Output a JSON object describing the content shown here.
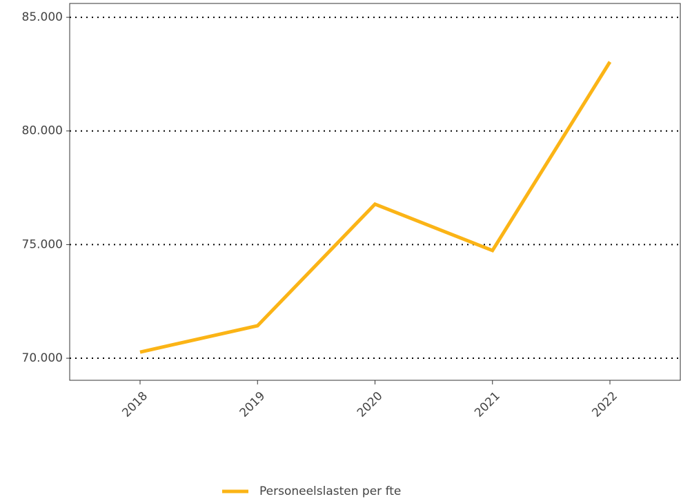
{
  "chart_data": {
    "type": "line",
    "categories": [
      "2018",
      "2019",
      "2020",
      "2021",
      "2022"
    ],
    "series": [
      {
        "name": "Personeelslasten per fte",
        "color": "#fbb416",
        "values": [
          70270,
          71430,
          76780,
          74740,
          83040
        ]
      }
    ],
    "ylim": [
      69030,
      85610
    ],
    "yticks": [
      {
        "value": 70000,
        "label": "70.000"
      },
      {
        "value": 75000,
        "label": "75.000"
      },
      {
        "value": 80000,
        "label": "80.000"
      },
      {
        "value": 85000,
        "label": "85.000"
      }
    ],
    "grid": true,
    "legend": "bottom"
  }
}
